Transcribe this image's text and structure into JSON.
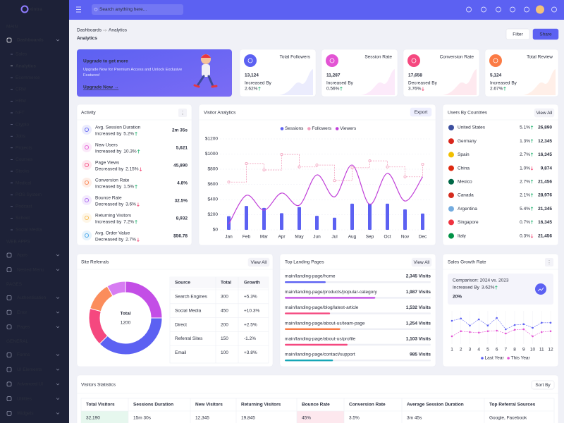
{
  "sidebar": {
    "brand": "xintra",
    "sections": [
      {
        "title": "MAIN",
        "items": [
          {
            "label": "Dashboards",
            "children": [
              "Sales",
              "Analytics",
              "Ecommerce",
              "CRM",
              "HRM",
              "NFT",
              "Crypto",
              "Jobs",
              "Projects",
              "Courses",
              "Stocks",
              "Medical",
              "POS System",
              "Podcast",
              "School",
              "Social Media"
            ]
          }
        ]
      },
      {
        "title": "WEB APPS",
        "items": [
          {
            "label": "Apps"
          },
          {
            "label": "Nested Menu"
          }
        ]
      },
      {
        "title": "PAGES",
        "items": [
          {
            "label": "Authentication"
          },
          {
            "label": "Error"
          },
          {
            "label": "Pages"
          }
        ]
      },
      {
        "title": "GENERAL",
        "items": [
          {
            "label": "Forms"
          },
          {
            "label": "UI Elements"
          },
          {
            "label": "Advanced UI"
          },
          {
            "label": "Utilities"
          },
          {
            "label": "Widgets"
          }
        ]
      }
    ]
  },
  "topbar": {
    "search_placeholder": "Search anything here..."
  },
  "header": {
    "breadcrumb": [
      "Dashboards",
      "Analytics"
    ],
    "title": "Analytics",
    "actions": [
      "Filter",
      "Share"
    ]
  },
  "upgrade": {
    "title": "Upgrade to get more",
    "text": "Upgrade Now for Premium Access and Unlock Exclusive Features!",
    "link": "Upgrade Now →"
  },
  "stats": [
    {
      "title": "Total Followers",
      "value": "13,124",
      "label": "Increased By",
      "change": "2.62%",
      "trend": "up",
      "color": "#5c61f2"
    },
    {
      "title": "Session Rate",
      "value": "11,287",
      "label": "Increased By",
      "change": "0.56%",
      "trend": "up",
      "color": "#e354d4"
    },
    {
      "title": "Conversion Rate",
      "value": "17,658",
      "label": "Decreased By",
      "change": "3.76%",
      "trend": "down",
      "color": "#f5487f"
    },
    {
      "title": "Total Review",
      "value": "5,124",
      "label": "Increased By",
      "change": "2.67%",
      "trend": "up",
      "color": "#fb7b45"
    }
  ],
  "activity": {
    "title": "Activity",
    "items": [
      {
        "label": "Avg. Session Duration",
        "status": "Increased by",
        "change": "5.2%",
        "trend": "up",
        "value": "2m 35s",
        "color": "#5c61f2"
      },
      {
        "label": "New Users",
        "status": "Increased by",
        "change": "10.3%",
        "trend": "up",
        "value": "5,621",
        "color": "#e354d4"
      },
      {
        "label": "Page Views",
        "status": "Decreased by",
        "change": "2.15%",
        "trend": "down",
        "value": "45,890",
        "color": "#f5487f"
      },
      {
        "label": "Conversion Rate",
        "status": "Increased by",
        "change": "1.5%",
        "trend": "up",
        "value": "4.8%",
        "color": "#fb7b45"
      },
      {
        "label": "Bounce Rate",
        "status": "Decreased by",
        "change": "3.6%",
        "trend": "down",
        "value": "32.5%",
        "color": "#a45cf0"
      },
      {
        "label": "Returning Visitors",
        "status": "Increased by",
        "change": "7.2%",
        "trend": "up",
        "value": "8,932",
        "color": "#f5b849"
      },
      {
        "label": "Avg. Order Value",
        "status": "Decreased by",
        "change": "2.7%",
        "trend": "down",
        "value": "$56.78",
        "color": "#3aa0e8"
      }
    ]
  },
  "countries": {
    "title": "Users By Countries",
    "action": "View All",
    "rows": [
      {
        "name": "United States",
        "change": "5.1%",
        "trend": "up",
        "value": "26,890",
        "flag": "#3c4f9f"
      },
      {
        "name": "Germany",
        "change": "1.3%",
        "trend": "up",
        "value": "12,345",
        "flag": "#d9261c"
      },
      {
        "name": "Spain",
        "change": "2.7%",
        "trend": "up",
        "value": "16,345",
        "flag": "#f1bf00"
      },
      {
        "name": "China",
        "change": "1.0%",
        "trend": "down",
        "value": "9,874",
        "flag": "#de2910"
      },
      {
        "name": "Mexico",
        "change": "2.7%",
        "trend": "up",
        "value": "21,456",
        "flag": "#006847"
      },
      {
        "name": "Canada",
        "change": "2.1%",
        "trend": "up",
        "value": "28,976",
        "flag": "#d52b1e"
      },
      {
        "name": "Argentina",
        "change": "5.4%",
        "trend": "up",
        "value": "21,345",
        "flag": "#74acdf"
      },
      {
        "name": "Singapore",
        "change": "0.7%",
        "trend": "up",
        "value": "16,345",
        "flag": "#ef3340"
      },
      {
        "name": "Italy",
        "change": "0.3%",
        "trend": "down",
        "value": "21,456",
        "flag": "#009246"
      }
    ]
  },
  "site_referrals": {
    "title": "Site Referrals",
    "action": "View All",
    "total_label": "Total",
    "total": 1200,
    "columns": [
      "Source",
      "Total",
      "Growth"
    ],
    "rows": [
      {
        "source": "Search Engines",
        "total": 300,
        "growth": "+5.3%",
        "trend": "up",
        "color": "#c34ee6"
      },
      {
        "source": "Social Media",
        "total": 450,
        "growth": "+10.3%",
        "trend": "up",
        "color": "#5c61f2"
      },
      {
        "source": "Direct",
        "total": 200,
        "growth": "+2.5%",
        "trend": "up",
        "color": "#f5487f"
      },
      {
        "source": "Referral Sites",
        "total": 150,
        "growth": "-1.2%",
        "trend": "down",
        "color": "#fb8d5c"
      },
      {
        "source": "Email",
        "total": 100,
        "growth": "+3.8%",
        "trend": "up",
        "color": "#d77cf2"
      }
    ]
  },
  "landing_pages": {
    "title": "Top Landing Pages",
    "action": "View All",
    "rows": [
      {
        "url": "main/landing-page/home",
        "visits": "2,345 Visits",
        "progress": 28,
        "color": "#5c61f2"
      },
      {
        "url": "main/landing-page/products/popular-category",
        "visits": "1,987 Visits",
        "progress": 62,
        "color": "#c34ee6"
      },
      {
        "url": "main/landing-page/blog/latest-article",
        "visits": "1,532 Visits",
        "progress": 31,
        "color": "#f5487f"
      },
      {
        "url": "main/landing-page/about-us/team-page",
        "visits": "1,254 Visits",
        "progress": 38,
        "color": "#fb7b45"
      },
      {
        "url": "main/landing-page/about-us/profile",
        "visits": "1,103 Visits",
        "progress": 43,
        "color": "#f5487f"
      },
      {
        "url": "main/landing-page/contact/support",
        "visits": "985 Visits",
        "progress": 33,
        "color": "#16a6b6"
      }
    ]
  },
  "visitors_statistics": {
    "title": "Visitors Statistics",
    "action": "Sort By",
    "columns": [
      "Total Visitors",
      "Sessions Duration",
      "New Visitors",
      "Returning Visitors",
      "Bounce Rate",
      "Conversion Rate",
      "Average Session Duration",
      "Top Referral Sources"
    ],
    "rows": [
      [
        "32,190",
        "15m 30s",
        "12,345",
        "19,845",
        "45%",
        "3.5%",
        "3m 45s",
        "Google, Facebook"
      ]
    ]
  },
  "chart_data": [
    {
      "type": "combo",
      "title": "Visitor Analytics",
      "action": "Export",
      "categories": [
        "Jan",
        "Feb",
        "Mar",
        "Apr",
        "May",
        "Jun",
        "Jul",
        "Aug",
        "Sep",
        "Oct",
        "Nov",
        "Dec"
      ],
      "series": [
        {
          "name": "Sessions",
          "mark": "bar",
          "color": "#5c61f2",
          "values": [
            180,
            315,
            290,
            220,
            300,
            185,
            160,
            345,
            345,
            345,
            270,
            215
          ]
        },
        {
          "name": "Followers",
          "mark": "step",
          "color": "#f2a0bd",
          "values": [
            630,
            875,
            790,
            995,
            830,
            855,
            650,
            820,
            910,
            830,
            700,
            865
          ]
        },
        {
          "name": "Viewers",
          "mark": "curve",
          "color": "#c03fd8",
          "values": [
            75,
            455,
            260,
            485,
            325,
            725,
            435,
            855,
            335,
            745,
            380,
            700
          ]
        }
      ],
      "ylim": [
        0,
        1200
      ],
      "yticks": [
        {
          "value": 0,
          "label": "$0"
        },
        {
          "value": 200,
          "label": "$200"
        },
        {
          "value": 400,
          "label": "$400"
        },
        {
          "value": 600,
          "label": "$600"
        },
        {
          "value": 800,
          "label": "$800"
        },
        {
          "value": 1000,
          "label": "$1000"
        },
        {
          "value": 1200,
          "label": "$1200"
        }
      ],
      "grid": true
    },
    {
      "type": "line",
      "title": "Sales Growth Rate",
      "subtitle": "Comparison: 2024 vs. 2023",
      "change_label": "Increased By",
      "change": "3.62%",
      "headline": "20%",
      "x": [
        1,
        2,
        3,
        4,
        5,
        6,
        7,
        8,
        9,
        10,
        11,
        12
      ],
      "xlim": [
        1,
        12
      ],
      "xticks": [
        1,
        2,
        3,
        4,
        5,
        6,
        7,
        8,
        9,
        10,
        11,
        12
      ],
      "ylim": [
        0,
        100
      ],
      "series": [
        {
          "name": "Last Year",
          "color": "#5c61f2",
          "values": [
            75,
            83,
            58,
            80,
            58,
            85,
            45,
            60,
            63,
            50,
            68,
            68
          ]
        },
        {
          "name": "This Year",
          "color": "#e354d4",
          "values": [
            20,
            38,
            35,
            33,
            38,
            40,
            30,
            43,
            45,
            20,
            35,
            38
          ]
        }
      ]
    }
  ]
}
